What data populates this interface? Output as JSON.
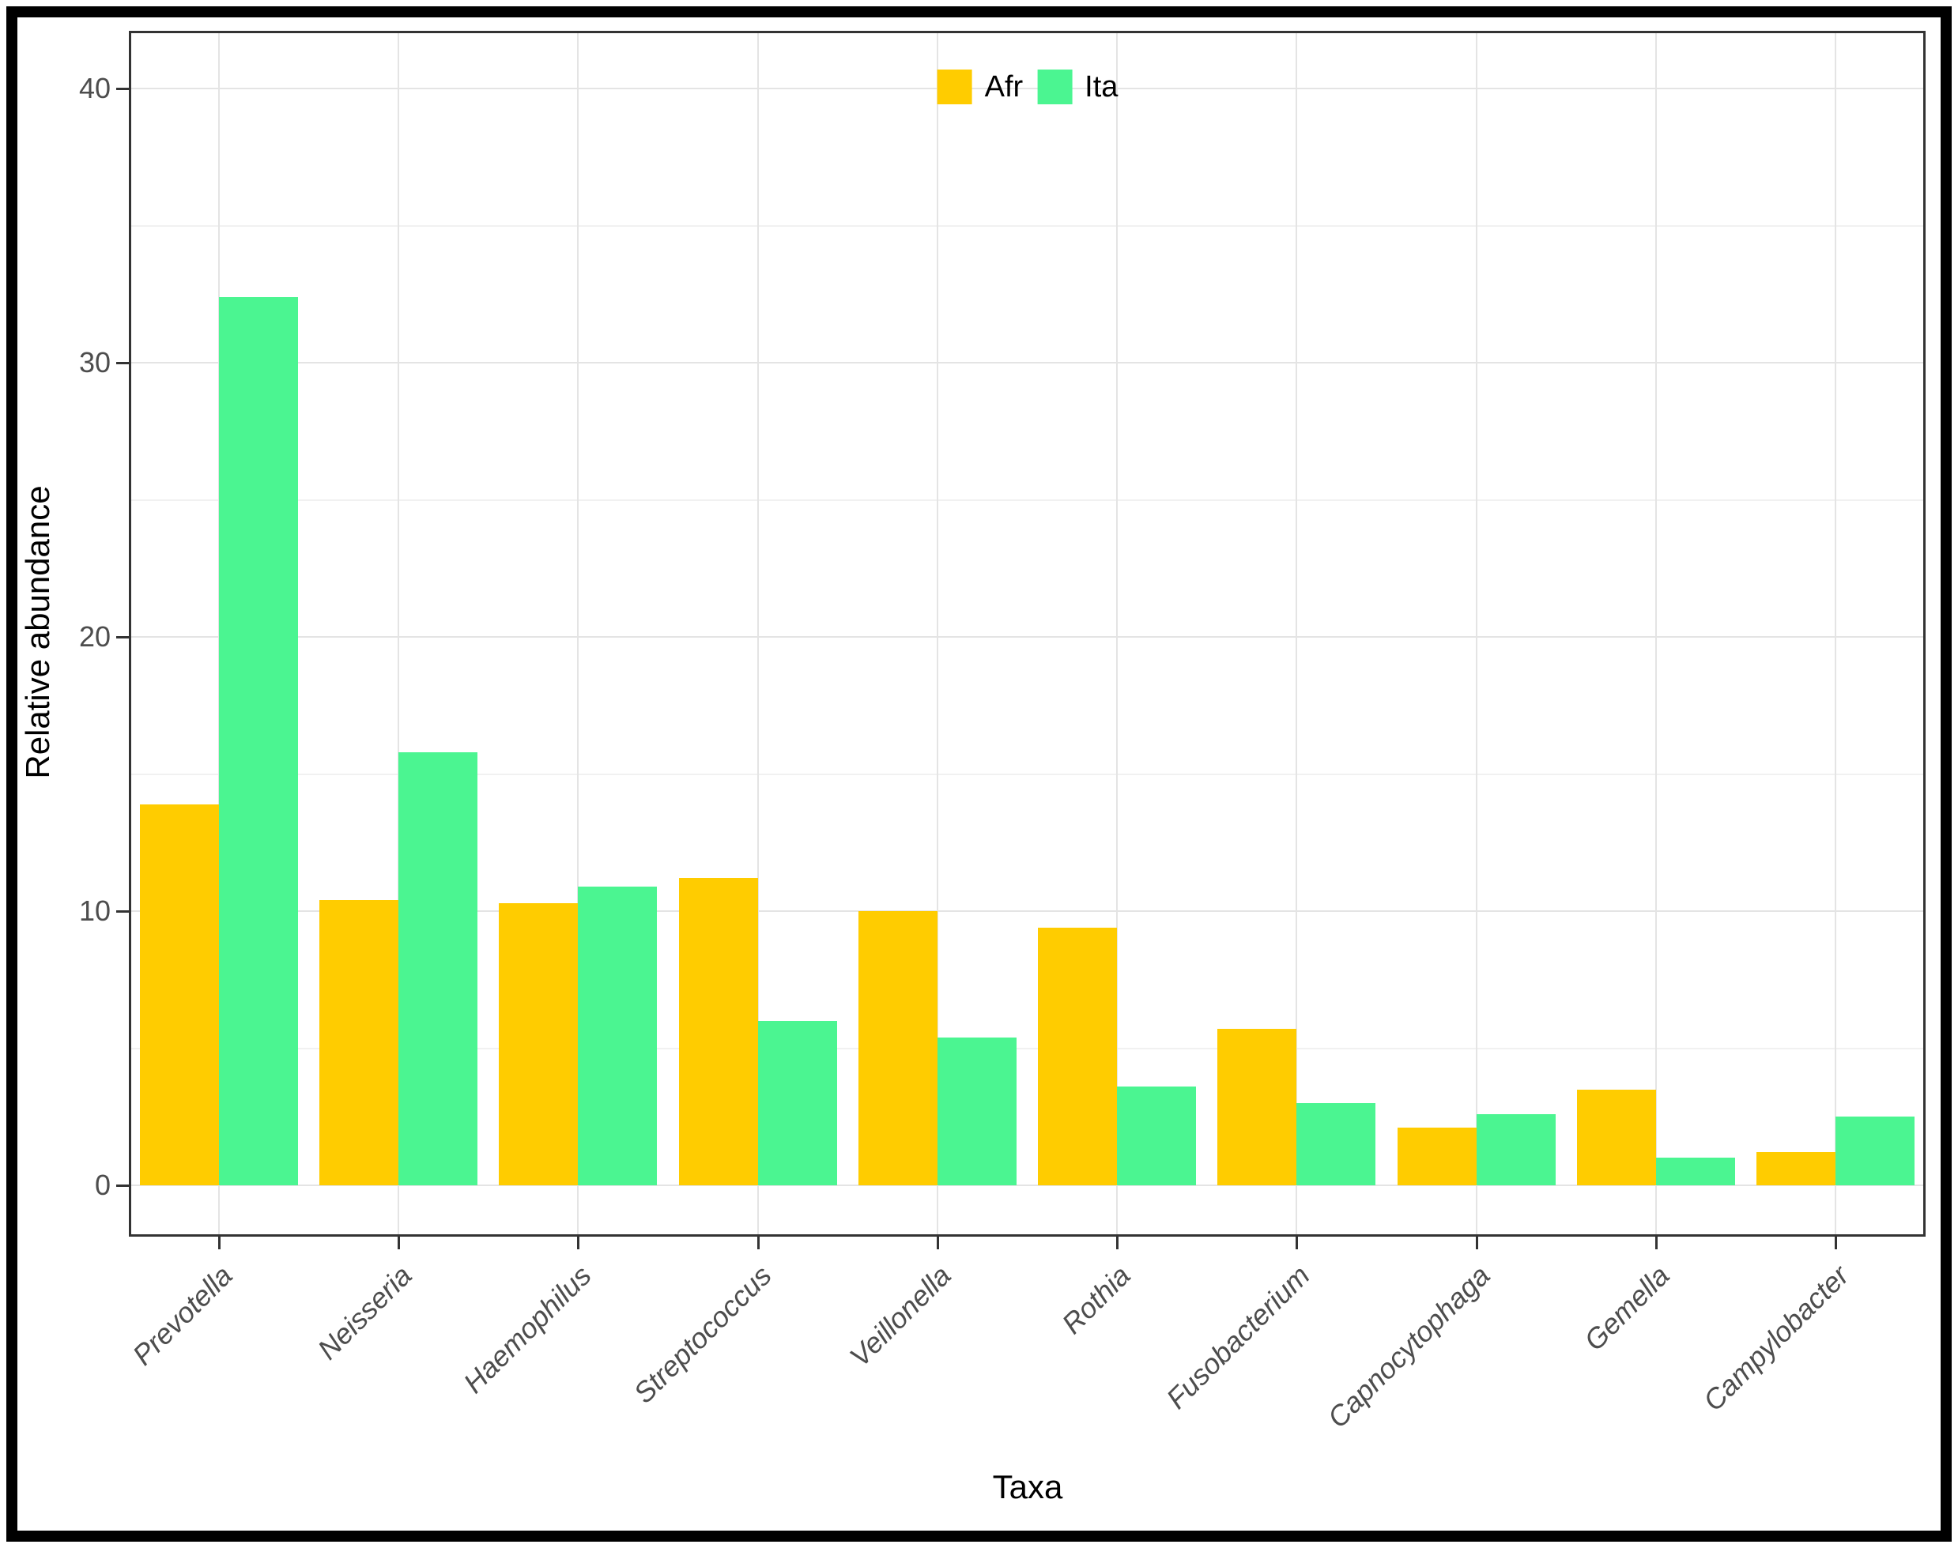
{
  "figure": {
    "y_axis_title": "Relative abundance",
    "x_axis_title": "Taxa"
  },
  "legend": {
    "items": [
      {
        "label": "Afr",
        "color": "#FFCC00"
      },
      {
        "label": "Ita",
        "color": "#4BF591"
      }
    ]
  },
  "chart_data": {
    "type": "bar",
    "bar_style": "grouped-dodge",
    "title": "",
    "xlabel": "Taxa",
    "ylabel": "Relative abundance",
    "categories": [
      "Prevotella",
      "Neisseria",
      "Haemophilus",
      "Streptococcus",
      "Veillonella",
      "Rothia",
      "Fusobacterium",
      "Capnocytophaga",
      "Gemella",
      "Campylobacter"
    ],
    "series": [
      {
        "name": "Afr",
        "color": "#FFCC00",
        "values": [
          13.9,
          10.4,
          10.3,
          11.2,
          10.0,
          9.4,
          5.7,
          2.1,
          3.5,
          1.2
        ]
      },
      {
        "name": "Ita",
        "color": "#4BF591",
        "values": [
          32.4,
          15.8,
          10.9,
          6.0,
          5.4,
          3.6,
          3.0,
          2.6,
          1.0,
          2.5
        ]
      }
    ],
    "ylim": [
      0,
      42
    ],
    "yticks_major": [
      0,
      10,
      20,
      30,
      40
    ],
    "yticks_minor": [
      5,
      15,
      25,
      35
    ],
    "grid": true,
    "legend_position": "top-center-inside",
    "category_labels_rotation_deg": 45,
    "category_labels_italic": true,
    "axis_text_color": "#4d4d4d"
  }
}
